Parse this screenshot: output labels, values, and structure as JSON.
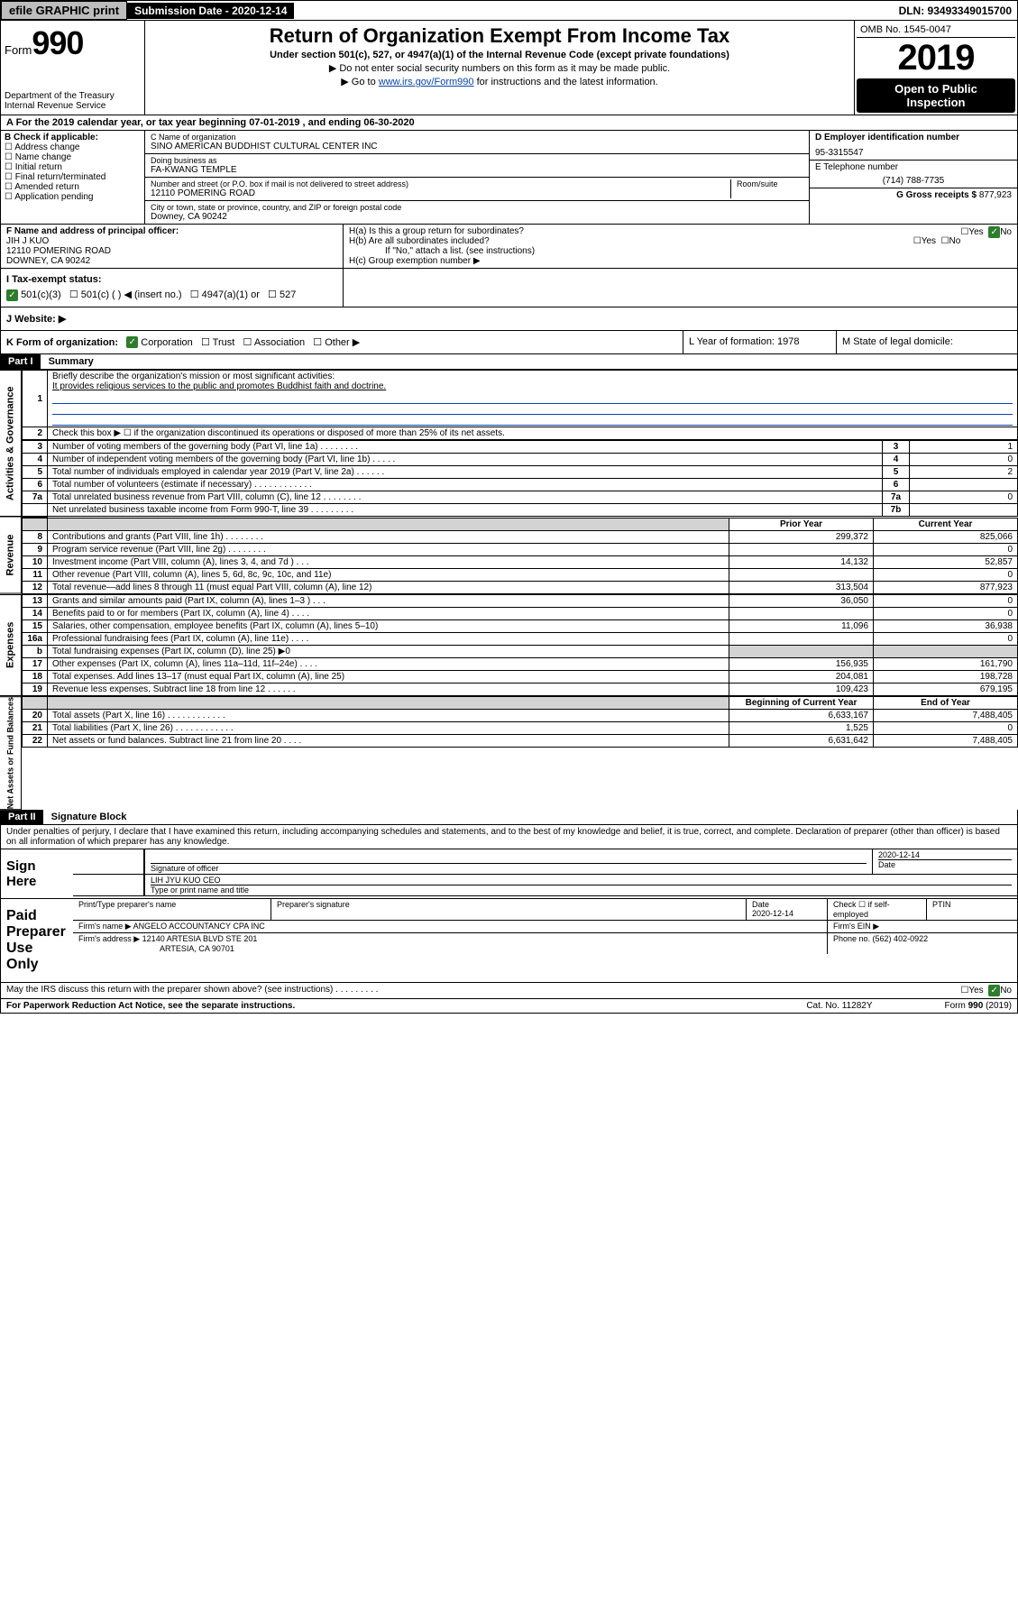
{
  "topbar": {
    "efile": "efile GRAPHIC print",
    "subdate_lbl": "Submission Date - 2020-12-14",
    "dln": "DLN: 93493349015700"
  },
  "hdr": {
    "form_prefix": "Form",
    "form_num": "990",
    "dept1": "Department of the Treasury",
    "dept2": "Internal Revenue Service",
    "title": "Return of Organization Exempt From Income Tax",
    "sub": "Under section 501(c), 527, or 4947(a)(1) of the Internal Revenue Code (except private foundations)",
    "arrow1": "▶ Do not enter social security numbers on this form as it may be made public.",
    "arrow2_pre": "▶ Go to ",
    "arrow2_link": "www.irs.gov/Form990",
    "arrow2_post": " for instructions and the latest information.",
    "omb": "OMB No. 1545-0047",
    "year": "2019",
    "open1": "Open to Public",
    "open2": "Inspection"
  },
  "rowA": "A  For the 2019 calendar year, or tax year beginning 07-01-2019     , and ending 06-30-2020",
  "boxB": {
    "lbl": "B Check if applicable:",
    "i1": "Address change",
    "i2": "Name change",
    "i3": "Initial return",
    "i4": "Final return/terminated",
    "i5": "Amended return",
    "i6": "Application pending"
  },
  "boxC": {
    "name_lbl": "C Name of organization",
    "name": "SINO AMERICAN BUDDHIST CULTURAL CENTER INC",
    "dba_lbl": "Doing business as",
    "dba": "FA-KWANG TEMPLE",
    "addr_lbl": "Number and street (or P.O. box if mail is not delivered to street address)",
    "room_lbl": "Room/suite",
    "addr": "12110 POMERING ROAD",
    "city_lbl": "City or town, state or province, country, and ZIP or foreign postal code",
    "city": "Downey, CA  90242"
  },
  "boxD": {
    "ein_lbl": "D Employer identification number",
    "ein": "95-3315547",
    "tel_lbl": "E Telephone number",
    "tel": "(714) 788-7735",
    "gross_lbl": "G Gross receipts $ ",
    "gross": "877,923"
  },
  "boxF": {
    "lbl": "F  Name and address of principal officer:",
    "name": "JIH J KUO",
    "addr": "12110 POMERING ROAD",
    "city": "DOWNEY, CA  90242"
  },
  "boxH": {
    "a": "H(a)  Is this a group return for subordinates?",
    "b": "H(b)  Are all subordinates included?",
    "bnote": "If \"No,\" attach a list. (see instructions)",
    "c": "H(c)  Group exemption number ▶",
    "yes": "Yes",
    "no": "No"
  },
  "rowI": {
    "lbl": "I  Tax-exempt status:",
    "o1": "501(c)(3)",
    "o2": "501(c) (   ) ◀ (insert no.)",
    "o3": "4947(a)(1) or",
    "o4": "527"
  },
  "rowJ": "J  Website: ▶",
  "rowK": {
    "k": "K Form of organization:",
    "k1": "Corporation",
    "k2": "Trust",
    "k3": "Association",
    "k4": "Other ▶",
    "l": "L Year of formation: 1978",
    "m": "M State of legal domicile:"
  },
  "part1": {
    "hdr": "Part I",
    "title": "Summary",
    "q1_lbl": "1",
    "q1": "Briefly describe the organization's mission or most significant activities:",
    "q1_ans": "It provides religious services to the public and promotes Buddhist faith and doctrine.",
    "q2_lbl": "2",
    "q2": "Check this box ▶ ☐  if the organization discontinued its operations or disposed of more than 25% of its net assets.",
    "rows37": [
      {
        "n": "3",
        "t": "Number of voting members of the governing body (Part VI, line 1a)   .    .    .    .    .    .    .    .",
        "rn": "3",
        "v": "1"
      },
      {
        "n": "4",
        "t": "Number of independent voting members of the governing body (Part VI, line 1b)    .    .    .    .    .",
        "rn": "4",
        "v": "0"
      },
      {
        "n": "5",
        "t": "Total number of individuals employed in calendar year 2019 (Part V, line 2a)    .    .    .    .    .    .",
        "rn": "5",
        "v": "2"
      },
      {
        "n": "6",
        "t": "Total number of volunteers (estimate if necessary)    .    .    .    .    .    .    .    .    .    .    .    .",
        "rn": "6",
        "v": ""
      },
      {
        "n": "7a",
        "t": "Total unrelated business revenue from Part VIII, column (C), line 12   .    .    .    .    .    .    .    .",
        "rn": "7a",
        "v": "0"
      },
      {
        "n": "",
        "t": "Net unrelated business taxable income from Form 990-T, line 39   .    .    .    .    .    .    .    .    .",
        "rn": "7b",
        "v": ""
      }
    ],
    "py": "Prior Year",
    "cy": "Current Year",
    "rev": [
      {
        "n": "8",
        "t": "Contributions and grants (Part VIII, line 1h)    .    .    .    .    .    .    .    .",
        "p": "299,372",
        "c": "825,066"
      },
      {
        "n": "9",
        "t": "Program service revenue (Part VIII, line 2g)    .    .    .    .    .    .    .    .",
        "p": "",
        "c": "0"
      },
      {
        "n": "10",
        "t": "Investment income (Part VIII, column (A), lines 3, 4, and 7d )   .    .    .",
        "p": "14,132",
        "c": "52,857"
      },
      {
        "n": "11",
        "t": "Other revenue (Part VIII, column (A), lines 5, 6d, 8c, 9c, 10c, and 11e)",
        "p": "",
        "c": "0"
      },
      {
        "n": "12",
        "t": "Total revenue—add lines 8 through 11 (must equal Part VIII, column (A), line 12)",
        "p": "313,504",
        "c": "877,923"
      }
    ],
    "exp": [
      {
        "n": "13",
        "t": "Grants and similar amounts paid (Part IX, column (A), lines 1–3 )   .    .    .",
        "p": "36,050",
        "c": "0"
      },
      {
        "n": "14",
        "t": "Benefits paid to or for members (Part IX, column (A), line 4)   .    .    .    .",
        "p": "",
        "c": "0"
      },
      {
        "n": "15",
        "t": "Salaries, other compensation, employee benefits (Part IX, column (A), lines 5–10)",
        "p": "11,096",
        "c": "36,938"
      },
      {
        "n": "16a",
        "t": "Professional fundraising fees (Part IX, column (A), line 11e)    .    .    .    .",
        "p": "",
        "c": "0"
      },
      {
        "n": "b",
        "t": "Total fundraising expenses (Part IX, column (D), line 25) ▶0",
        "p": "shade",
        "c": "shade"
      },
      {
        "n": "17",
        "t": "Other expenses (Part IX, column (A), lines 11a–11d, 11f–24e)   .    .    .    .",
        "p": "156,935",
        "c": "161,790"
      },
      {
        "n": "18",
        "t": "Total expenses. Add lines 13–17 (must equal Part IX, column (A), line 25)",
        "p": "204,081",
        "c": "198,728"
      },
      {
        "n": "19",
        "t": "Revenue less expenses. Subtract line 18 from line 12   .    .    .    .    .    .",
        "p": "109,423",
        "c": "679,195"
      }
    ],
    "bcy": "Beginning of Current Year",
    "eoy": "End of Year",
    "net": [
      {
        "n": "20",
        "t": "Total assets (Part X, line 16)    .    .    .    .    .    .    .    .    .    .    .    .",
        "p": "6,633,167",
        "c": "7,488,405"
      },
      {
        "n": "21",
        "t": "Total liabilities (Part X, line 26)    .    .    .    .    .    .    .    .    .    .    .    .",
        "p": "1,525",
        "c": "0"
      },
      {
        "n": "22",
        "t": "Net assets or fund balances. Subtract line 21 from line 20   .    .    .    .",
        "p": "6,631,642",
        "c": "7,488,405"
      }
    ],
    "vlab1": "Activities & Governance",
    "vlab2": "Revenue",
    "vlab3": "Expenses",
    "vlab4": "Net Assets or Fund Balances"
  },
  "part2": {
    "hdr": "Part II",
    "title": "Signature Block",
    "decl": "Under penalties of perjury, I declare that I have examined this return, including accompanying schedules and statements, and to the best of my knowledge and belief, it is true, correct, and complete. Declaration of preparer (other than officer) is based on all information of which preparer has any knowledge.",
    "sign": "Sign Here",
    "sigoff": "Signature of officer",
    "sigdate": "2020-12-14",
    "date_lbl": "Date",
    "typed": "LIH JYU KUO  CEO",
    "typed_lbl": "Type or print name and title",
    "paid": "Paid Preparer Use Only",
    "pp_name_lbl": "Print/Type preparer's name",
    "pp_sig_lbl": "Preparer's signature",
    "pp_date": "2020-12-14",
    "pp_check": "Check ☐ if self-employed",
    "ptin": "PTIN",
    "firm_name_lbl": "Firm's name      ▶",
    "firm_name": "ANGELO ACCOUNTANCY CPA INC",
    "firm_ein": "Firm's EIN ▶",
    "firm_addr_lbl": "Firm's address ▶",
    "firm_addr1": "12140 ARTESIA BLVD STE 201",
    "firm_addr2": "ARTESIA, CA  90701",
    "phone_lbl": "Phone no. ",
    "phone": "(562) 402-0922",
    "discuss": "May the IRS discuss this return with the preparer shown above? (see instructions)     .    .    .    .    .    .    .    .    .",
    "yes": "Yes",
    "no": "No"
  },
  "footer": {
    "c1": "For Paperwork Reduction Act Notice, see the separate instructions.",
    "c2": "Cat. No. 11282Y",
    "c3": "Form 990 (2019)"
  }
}
